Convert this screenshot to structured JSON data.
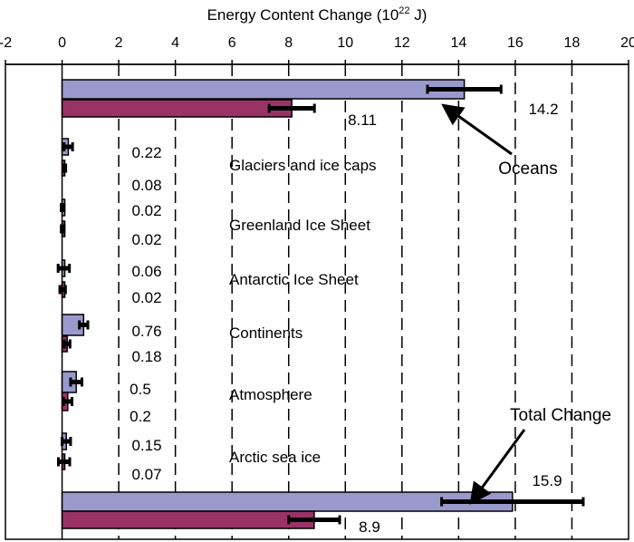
{
  "chart_data": {
    "type": "bar",
    "orientation": "horizontal",
    "title": "Energy Content Change (10",
    "title_sup": "22",
    "title_unit": " J)",
    "xlim": [
      -2,
      20
    ],
    "xticks": [
      -2,
      0,
      2,
      4,
      6,
      8,
      10,
      12,
      14,
      16,
      18,
      20
    ],
    "grid": "vertical dashed",
    "colors": {
      "series1": "#9999cc",
      "series2": "#993366",
      "grid": "#000000"
    },
    "categories": [
      "Oceans",
      "Glaciers and ice caps",
      "Greenland Ice Sheet",
      "Antarctic Ice Sheet",
      "Continents",
      "Atmosphere",
      "Arctic sea ice",
      "Total Change"
    ],
    "category_labels_printed": [
      "",
      "Glaciers and ice caps",
      "Greenland Ice Sheet",
      "Antarctic Ice Sheet",
      "Continents",
      "Atmosphere",
      "Arctic sea ice",
      ""
    ],
    "series": [
      {
        "values": [
          14.2,
          0.22,
          0.02,
          0.06,
          0.76,
          0.5,
          0.15,
          15.9
        ],
        "labels": [
          "14.2",
          "0.22",
          "0.02",
          "0.06",
          "0.76",
          "0.5",
          "0.15",
          "15.9"
        ],
        "error": [
          1.3,
          0.15,
          0.05,
          0.2,
          0.15,
          0.2,
          0.15,
          2.5
        ]
      },
      {
        "values": [
          8.11,
          0.08,
          0.02,
          0.02,
          0.18,
          0.2,
          0.07,
          8.9
        ],
        "labels": [
          "8.11",
          "0.08",
          "0.02",
          "0.02",
          "0.18",
          "0.2",
          "0.07",
          "8.9"
        ],
        "error": [
          0.8,
          0.05,
          0.05,
          0.1,
          0.1,
          0.15,
          0.2,
          0.9
        ]
      }
    ],
    "annotations": [
      "Oceans",
      "Total Change"
    ]
  }
}
